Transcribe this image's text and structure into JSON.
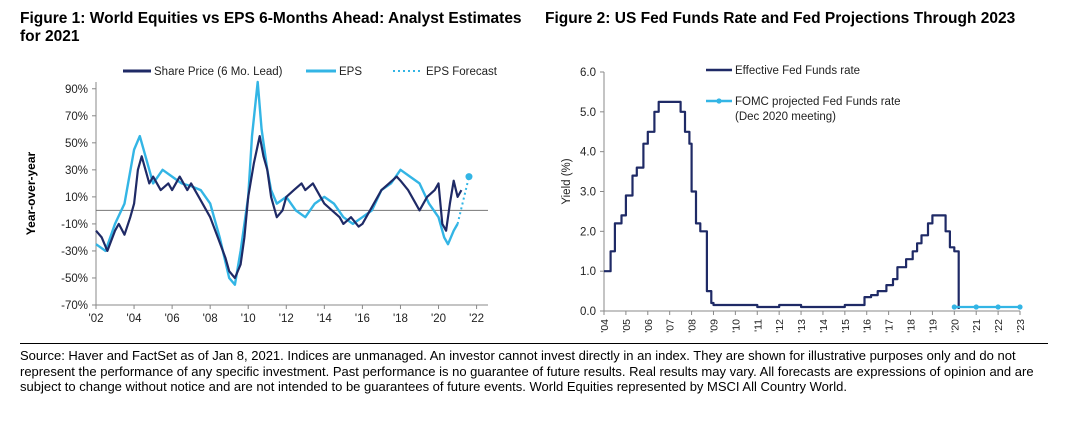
{
  "figure1": {
    "title": "Figure 1: World Equities vs EPS 6-Months Ahead: Analyst Estimates for 2021",
    "chart_data": {
      "type": "line",
      "ylabel": "Year-over-year",
      "xlabel": "",
      "xlim": [
        2002,
        2022.6
      ],
      "ylim": [
        -70,
        95
      ],
      "xticks": [
        "'02",
        "'04",
        "'06",
        "'08",
        "'10",
        "'12",
        "'14",
        "'16",
        "'18",
        "'20",
        "'22"
      ],
      "yticks": [
        "90%",
        "70%",
        "50%",
        "30%",
        "10%",
        "-10%",
        "-30%",
        "-50%",
        "-70%"
      ],
      "ytick_values": [
        90,
        70,
        50,
        30,
        10,
        -10,
        -30,
        -50,
        -70
      ],
      "legend": [
        "Share Price (6 Mo. Lead)",
        "EPS",
        "EPS Forecast"
      ],
      "legend_placement": "top",
      "series": [
        {
          "name": "Share Price (6 Mo. Lead)",
          "color": "#1f2a66",
          "x": [
            2002,
            2002.3,
            2002.6,
            2003,
            2003.2,
            2003.5,
            2003.8,
            2004,
            2004.2,
            2004.4,
            2004.8,
            2005,
            2005.4,
            2005.8,
            2006,
            2006.4,
            2006.8,
            2007,
            2007.4,
            2007.8,
            2008,
            2008.4,
            2008.8,
            2009,
            2009.3,
            2009.6,
            2009.8,
            2010,
            2010.3,
            2010.6,
            2010.8,
            2011,
            2011.2,
            2011.5,
            2011.8,
            2012,
            2012.4,
            2012.8,
            2013,
            2013.4,
            2013.8,
            2014,
            2014.4,
            2014.8,
            2015,
            2015.4,
            2015.8,
            2016,
            2016.4,
            2016.8,
            2017,
            2017.4,
            2017.8,
            2018,
            2018.4,
            2018.8,
            2019,
            2019.4,
            2019.8,
            2020,
            2020.2,
            2020.4,
            2020.6,
            2020.8,
            2021,
            2021.2
          ],
          "y": [
            -15,
            -20,
            -30,
            -15,
            -10,
            -18,
            -5,
            5,
            30,
            40,
            20,
            25,
            15,
            20,
            15,
            25,
            15,
            20,
            10,
            0,
            -5,
            -20,
            -35,
            -45,
            -50,
            -40,
            -20,
            10,
            35,
            55,
            40,
            30,
            10,
            -5,
            0,
            10,
            15,
            20,
            15,
            20,
            10,
            5,
            0,
            -5,
            -10,
            -5,
            -12,
            -10,
            0,
            10,
            15,
            20,
            25,
            22,
            15,
            5,
            0,
            10,
            15,
            20,
            -10,
            -15,
            5,
            22,
            10,
            15
          ]
        },
        {
          "name": "EPS",
          "color": "#33b5e5",
          "x": [
            2002,
            2002.5,
            2003,
            2003.5,
            2004,
            2004.3,
            2004.6,
            2005,
            2005.5,
            2006,
            2006.5,
            2007,
            2007.5,
            2008,
            2008.5,
            2009,
            2009.3,
            2009.6,
            2010,
            2010.2,
            2010.5,
            2010.7,
            2011,
            2011.2,
            2011.5,
            2012,
            2012.5,
            2013,
            2013.5,
            2014,
            2014.5,
            2015,
            2015.5,
            2016,
            2016.5,
            2017,
            2017.5,
            2018,
            2018.5,
            2019,
            2019.5,
            2020,
            2020.3,
            2020.5,
            2020.8,
            2021
          ],
          "y": [
            -25,
            -30,
            -10,
            5,
            45,
            55,
            40,
            20,
            30,
            25,
            20,
            18,
            15,
            5,
            -20,
            -50,
            -55,
            -30,
            10,
            55,
            95,
            60,
            30,
            15,
            5,
            10,
            0,
            -5,
            5,
            10,
            5,
            -5,
            -10,
            -5,
            0,
            15,
            20,
            30,
            25,
            20,
            5,
            -5,
            -20,
            -25,
            -15,
            -10
          ]
        },
        {
          "name": "EPS Forecast",
          "color": "#33b5e5",
          "dashed": true,
          "x": [
            2021,
            2021.6
          ],
          "y": [
            -10,
            25
          ]
        }
      ]
    }
  },
  "figure2": {
    "title": "Figure 2: US Fed Funds Rate and Fed Projections Through 2023",
    "chart_data": {
      "type": "line",
      "ylabel": "Yield (%)",
      "xlabel": "",
      "xlim": [
        2004,
        2023
      ],
      "ylim": [
        0,
        6
      ],
      "xticks": [
        "'04",
        "'05",
        "'06",
        "'07",
        "'08",
        "'09",
        "'10",
        "'11",
        "'12",
        "'13",
        "'14",
        "'15",
        "'16",
        "'17",
        "'18",
        "'19",
        "'20",
        "'21",
        "'22",
        "'23"
      ],
      "yticks": [
        "6.0",
        "5.0",
        "4.0",
        "3.0",
        "2.0",
        "1.0",
        "0.0"
      ],
      "ytick_values": [
        6,
        5,
        4,
        3,
        2,
        1,
        0
      ],
      "legend": [
        "Effective Fed Funds rate",
        "FOMC projected Fed Funds rate",
        "(Dec 2020 meeting)"
      ],
      "legend_placement": "top-center",
      "series": [
        {
          "name": "Effective Fed Funds rate",
          "color": "#1f2a66",
          "x": [
            2004,
            2004.3,
            2004.5,
            2004.8,
            2005,
            2005.3,
            2005.5,
            2005.8,
            2006,
            2006.3,
            2006.5,
            2006.8,
            2007,
            2007.3,
            2007.5,
            2007.7,
            2007.9,
            2008,
            2008.2,
            2008.4,
            2008.7,
            2008.9,
            2009,
            2010,
            2011,
            2012,
            2013,
            2014,
            2015,
            2015.9,
            2016.2,
            2016.5,
            2016.9,
            2017.2,
            2017.4,
            2017.8,
            2018.1,
            2018.3,
            2018.5,
            2018.8,
            2019,
            2019.3,
            2019.6,
            2019.8,
            2020,
            2020.2
          ],
          "y": [
            1.0,
            1.5,
            2.2,
            2.4,
            2.9,
            3.4,
            3.6,
            4.2,
            4.5,
            5.0,
            5.25,
            5.25,
            5.25,
            5.25,
            5.0,
            4.5,
            4.2,
            3.0,
            2.2,
            2.0,
            0.5,
            0.2,
            0.15,
            0.15,
            0.1,
            0.15,
            0.1,
            0.1,
            0.15,
            0.35,
            0.4,
            0.5,
            0.65,
            0.8,
            1.1,
            1.3,
            1.5,
            1.7,
            1.9,
            2.2,
            2.4,
            2.4,
            2.0,
            1.6,
            1.5,
            0.05
          ]
        },
        {
          "name": "FOMC projected Fed Funds rate",
          "color": "#33b5e5",
          "x": [
            2020,
            2021,
            2022,
            2023
          ],
          "y": [
            0.1,
            0.1,
            0.1,
            0.1
          ]
        }
      ]
    }
  },
  "source_text": "Source: Haver and FactSet as of Jan 8, 2021. Indices are unmanaged. An investor cannot invest directly in an index. They are shown for illustrative purposes only and do not represent the performance of any specific investment. Past performance is no guarantee of future results. Real results may vary. All forecasts are expressions of opinion and are subject to change without notice and are not intended to be guarantees of future events. World Equities represented by MSCI All Country World."
}
